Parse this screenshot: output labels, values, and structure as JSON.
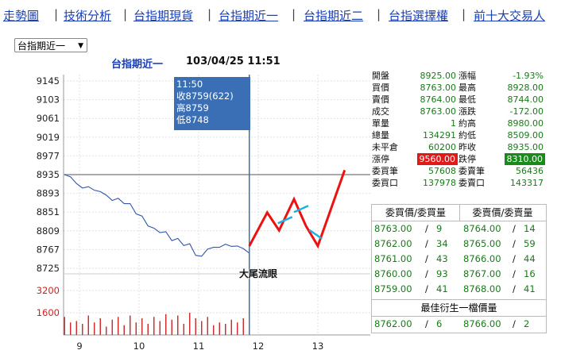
{
  "nav": {
    "items": [
      "走勢圖",
      "技術分析",
      "台指期現貨",
      "台指期近一",
      "台指期近二",
      "台指選擇權",
      "前十大交易人"
    ],
    "separator": "|"
  },
  "select": {
    "value": "台指期近一",
    "arrow": "▼"
  },
  "chart": {
    "title": "台指期近一",
    "datetime": "103/04/25 11:51",
    "tooltip": {
      "time": "11:50",
      "close": "收8759(622)",
      "high": "高8759",
      "low": "低8748"
    },
    "annotation": "大尾流眼"
  },
  "chart_data": {
    "type": "line",
    "price_ticks": [
      "9145",
      "9103",
      "9061",
      "9019",
      "8977",
      "8935",
      "8893",
      "8851",
      "8809",
      "8767",
      "8725"
    ],
    "volume_ticks": [
      "3200",
      "1600"
    ],
    "x_ticks": [
      "9",
      "10",
      "11",
      "12",
      "13"
    ],
    "reference_price": 8935,
    "ylim": [
      8725,
      9145
    ],
    "volume_ylim": [
      0,
      4000
    ],
    "price_series": {
      "x": [
        8.75,
        8.85,
        8.95,
        9.05,
        9.15,
        9.25,
        9.35,
        9.45,
        9.55,
        9.65,
        9.75,
        9.85,
        9.95,
        10.05,
        10.15,
        10.25,
        10.35,
        10.45,
        10.55,
        10.65,
        10.75,
        10.85,
        10.95,
        11.05,
        11.15,
        11.25,
        11.35,
        11.45,
        11.55,
        11.65,
        11.75,
        11.85
      ],
      "y": [
        8935,
        8930,
        8915,
        8905,
        8908,
        8900,
        8897,
        8889,
        8877,
        8882,
        8870,
        8870,
        8847,
        8842,
        8820,
        8815,
        8805,
        8807,
        8787,
        8792,
        8776,
        8780,
        8754,
        8752,
        8768,
        8772,
        8772,
        8779,
        8774,
        8775,
        8769,
        8759
      ]
    },
    "forecast_path": {
      "x": [
        11.85,
        12.15,
        12.35,
        12.6,
        12.8,
        13.0,
        13.45
      ],
      "y": [
        8775,
        8850,
        8810,
        8880,
        8820,
        8775,
        8945
      ]
    },
    "volume_series": {
      "x": [
        8.75,
        8.85,
        8.95,
        9.05,
        9.15,
        9.25,
        9.35,
        9.45,
        9.55,
        9.65,
        9.75,
        9.85,
        9.95,
        10.05,
        10.15,
        10.25,
        10.35,
        10.45,
        10.55,
        10.65,
        10.75,
        10.85,
        10.95,
        11.05,
        11.15,
        11.25,
        11.35,
        11.45,
        11.55,
        11.65,
        11.75,
        11.85
      ],
      "y": [
        1300,
        900,
        1000,
        800,
        1400,
        900,
        1200,
        600,
        1100,
        1300,
        700,
        1400,
        900,
        1200,
        800,
        1300,
        1000,
        1500,
        1100,
        1400,
        800,
        1600,
        1200,
        1000,
        1300,
        700,
        900,
        800,
        1100,
        900,
        1200,
        1400
      ]
    }
  },
  "quote": {
    "rows": [
      {
        "l1": "開盤",
        "v1": "8925.00",
        "l2": "漲幅",
        "v2": "-1.93%"
      },
      {
        "l1": "買價",
        "v1": "8763.00",
        "l2": "最高",
        "v2": "8928.00"
      },
      {
        "l1": "賣價",
        "v1": "8764.00",
        "l2": "最低",
        "v2": "8744.00"
      },
      {
        "l1": "成交",
        "v1": "8763.00",
        "l2": "漲跌",
        "v2": "-172.00"
      },
      {
        "l1": "單量",
        "v1": "1",
        "l2": "約高",
        "v2": "8980.00"
      },
      {
        "l1": "總量",
        "v1": "134291",
        "l2": "約低",
        "v2": "8509.00"
      },
      {
        "l1": "未平倉",
        "v1": "60200",
        "l2": "昨收",
        "v2": "8935.00"
      },
      {
        "l1": "漲停",
        "v1": "9560.00",
        "l2": "跌停",
        "v2": "8310.00"
      },
      {
        "l1": "委買筆",
        "v1": "57608",
        "l2": "委賣筆",
        "v2": "56436"
      },
      {
        "l1": "委買口",
        "v1": "137978",
        "l2": "委賣口",
        "v2": "143317"
      }
    ]
  },
  "depth": {
    "bid_header": "委買價/委買量",
    "ask_header": "委賣價/委賣量",
    "rows": [
      {
        "bp": "8763.00",
        "bq": "9",
        "ap": "8764.00",
        "aq": "14"
      },
      {
        "bp": "8762.00",
        "bq": "34",
        "ap": "8765.00",
        "aq": "59"
      },
      {
        "bp": "8761.00",
        "bq": "43",
        "ap": "8766.00",
        "aq": "44"
      },
      {
        "bp": "8760.00",
        "bq": "93",
        "ap": "8767.00",
        "aq": "16"
      },
      {
        "bp": "8759.00",
        "bq": "41",
        "ap": "8768.00",
        "aq": "41"
      }
    ],
    "slash": "/",
    "derived_header": "最佳衍生一檔價量",
    "derived": {
      "bp": "8762.00",
      "bq": "6",
      "ap": "8766.00",
      "aq": "2"
    }
  },
  "colors": {
    "link": "#1a3fb5",
    "price_line": "#3355aa",
    "volume": "#cc2222",
    "forecast": "#ee1111",
    "marker": "#1ab3e0",
    "tooltip_bg": "#3a6fb5",
    "green": "#1a7a1a"
  }
}
